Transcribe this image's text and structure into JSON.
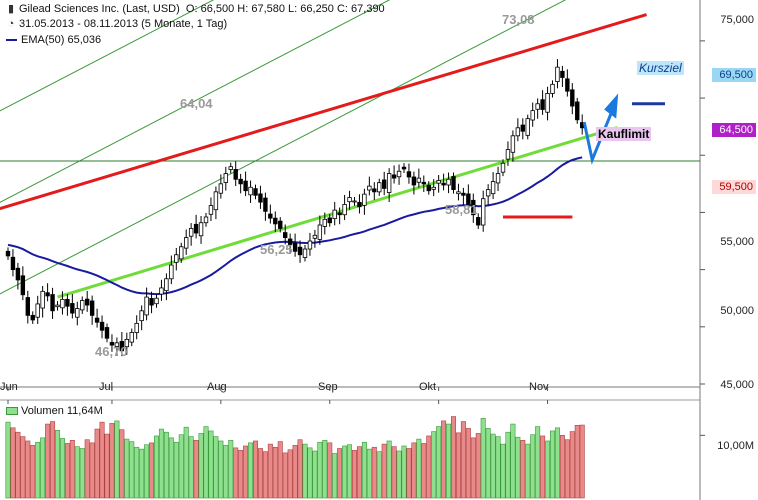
{
  "header": {
    "title": "Gilead Sciences Inc. (Last, USD)",
    "ohlc": "O: 66,500  H: 67,580  L: 66,250  C: 67,390",
    "range": "31.05.2013 - 08.11.2013 (5 Monate, 1 Tag)",
    "ema_label": "EMA(50)",
    "ema_value": "65,036",
    "volume_label": "Volumen",
    "volume_value": "11,64M"
  },
  "peaks": {
    "p1": "64,04",
    "p2": "56,25",
    "p3": "58,81",
    "p4": "73,08",
    "p5": "46,70"
  },
  "annotations": {
    "kursziel": "Kursziel",
    "kauflimit": "Kauflimit"
  },
  "price_badges": {
    "kursziel": "69,500",
    "current": "64,500",
    "stop": "59,500"
  },
  "colors": {
    "up_candle": "#ffffff",
    "down_candle": "#000000",
    "ema": "#1a1aa0",
    "resistance": "#e31b1b",
    "support": "#6fdc3a",
    "channel": "#3a9a3a",
    "vol_up": "#8ee08e",
    "vol_down": "#e88a8a",
    "arrow": "#1a7ae0"
  },
  "chart_data": {
    "type": "candlestick",
    "ylim": [
      45,
      77
    ],
    "y_ticks": [
      "75,000",
      "70,000",
      "65,000",
      "60,000",
      "55,000",
      "50,000",
      "45,000"
    ],
    "y_tick_values": [
      75,
      70,
      65,
      60,
      55,
      50,
      45
    ],
    "x_ticks": [
      "Jun",
      "Jul",
      "Aug",
      "Sep",
      "Okt",
      "Nov"
    ],
    "x_tick_indices": [
      0,
      21,
      43,
      65,
      87,
      109
    ],
    "n_days": 117,
    "closes": [
      56.2,
      55.0,
      54.1,
      52.8,
      51.0,
      50.6,
      52.0,
      53.1,
      52.7,
      51.4,
      51.9,
      52.4,
      51.8,
      51.2,
      51.6,
      52.3,
      51.9,
      51.0,
      50.4,
      49.7,
      49.0,
      48.4,
      48.6,
      47.9,
      48.9,
      49.5,
      50.3,
      51.4,
      52.6,
      51.9,
      52.5,
      53.4,
      54.2,
      55.4,
      56.3,
      57.0,
      57.8,
      58.6,
      58.2,
      59.1,
      59.6,
      60.6,
      61.8,
      62.5,
      63.4,
      64.0,
      62.9,
      62.5,
      61.9,
      62.2,
      61.5,
      60.9,
      60.1,
      59.5,
      59.0,
      58.6,
      57.8,
      57.2,
      56.6,
      56.3,
      56.8,
      57.5,
      58.0,
      58.9,
      59.4,
      59.1,
      60.2,
      59.8,
      60.7,
      61.3,
      61.0,
      60.5,
      61.6,
      62.3,
      61.8,
      62.6,
      62.1,
      63.4,
      63.0,
      63.6,
      63.8,
      63.1,
      62.4,
      63.0,
      62.5,
      61.9,
      62.2,
      62.8,
      62.4,
      62.9,
      62.0,
      61.8,
      61.5,
      60.7,
      59.8,
      58.9,
      61.2,
      62.0,
      62.7,
      63.4,
      64.3,
      65.5,
      66.7,
      67.4,
      67.1,
      68.2,
      68.9,
      69.5,
      69.0,
      70.4,
      71.2,
      72.7,
      71.8,
      70.6,
      69.3,
      68.1,
      67.4
    ],
    "volumes": [
      12.1,
      11.2,
      10.5,
      9.8,
      9.1,
      8.4,
      8.9,
      9.6,
      11.8,
      12.2,
      10.8,
      9.5,
      8.7,
      9.2,
      8.2,
      7.9,
      9.3,
      8.8,
      11.0,
      12.1,
      10.2,
      11.9,
      12.3,
      10.9,
      9.4,
      9.0,
      8.1,
      7.8,
      8.5,
      8.8,
      9.9,
      11.0,
      10.5,
      9.6,
      8.9,
      10.1,
      11.3,
      9.8,
      9.2,
      10.3,
      11.4,
      10.7,
      9.8,
      9.1,
      8.4,
      9.2,
      8.0,
      7.6,
      8.3,
      8.8,
      9.1,
      7.9,
      7.4,
      8.6,
      8.1,
      9.0,
      7.2,
      7.7,
      8.4,
      9.3,
      8.6,
      8.0,
      7.5,
      8.9,
      9.2,
      8.8,
      7.1,
      7.9,
      8.3,
      8.5,
      7.6,
      8.2,
      8.9,
      7.8,
      8.1,
      7.4,
      8.6,
      9.1,
      8.2,
      7.5,
      8.3,
      7.9,
      8.8,
      9.4,
      8.7,
      9.9,
      10.6,
      11.4,
      12.3,
      11.8,
      13.0,
      10.4,
      12.2,
      11.1,
      9.6,
      10.3,
      12.7,
      11.1,
      10.2,
      9.8,
      8.6,
      10.5,
      11.8,
      9.7,
      9.2,
      8.6,
      10.1,
      11.4,
      9.9,
      9.1,
      10.7,
      11.2,
      10.0,
      9.3,
      10.6,
      11.6,
      11.64
    ],
    "vol_ylim": [
      0,
      15
    ],
    "vol_y_tick": "10,00M",
    "vol_y_tick_value": 10,
    "ema_period": 50,
    "support_line": {
      "from": [
        10,
        52.6
      ],
      "to": [
        115,
        66.9
      ]
    },
    "resistance_line": {
      "from": [
        -5,
        59.9
      ],
      "to": [
        129,
        77.3
      ]
    },
    "horizontal_line": 64.5,
    "stop_line": {
      "from": [
        100,
        59.6
      ],
      "to": [
        112,
        59.6
      ]
    }
  }
}
